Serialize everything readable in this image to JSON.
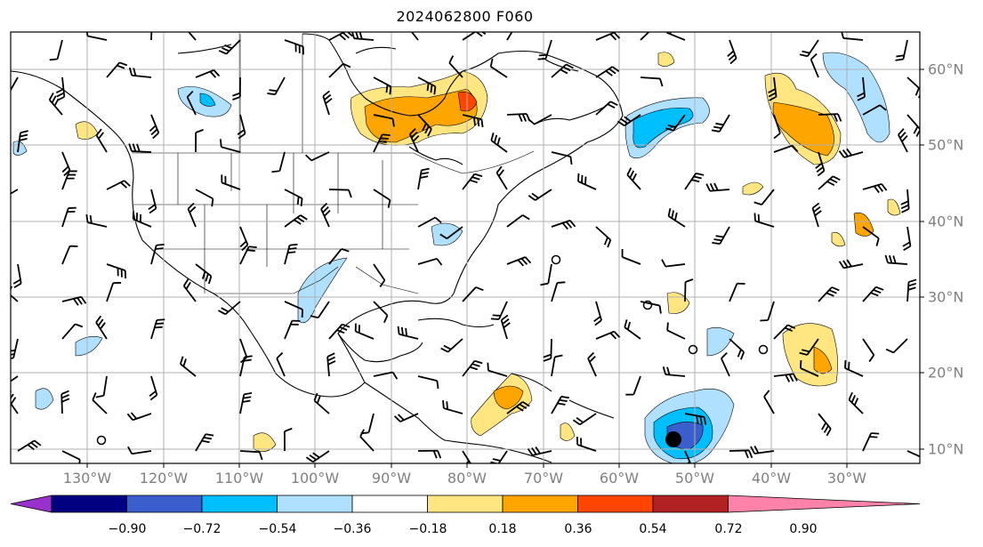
{
  "title": "2024062800 F060",
  "map": {
    "lon_labels": [
      "130°W",
      "120°W",
      "110°W",
      "100°W",
      "90°W",
      "80°W",
      "70°W",
      "60°W",
      "50°W",
      "40°W",
      "30°W"
    ],
    "lat_labels": [
      "60°N",
      "50°N",
      "40°N",
      "30°N",
      "20°N",
      "10°N"
    ]
  },
  "colorbar": {
    "ticks": [
      "−0.90",
      "−0.72",
      "−0.54",
      "−0.36",
      "−0.18",
      "0.18",
      "0.36",
      "0.54",
      "0.72",
      "0.90"
    ],
    "colors": [
      "#9932cc",
      "#000080",
      "#3a5fcd",
      "#00bfff",
      "#b0e0ff",
      "#ffffff",
      "#ffe680",
      "#ffa500",
      "#ff4500",
      "#b22222",
      "#ff82ab"
    ]
  }
}
